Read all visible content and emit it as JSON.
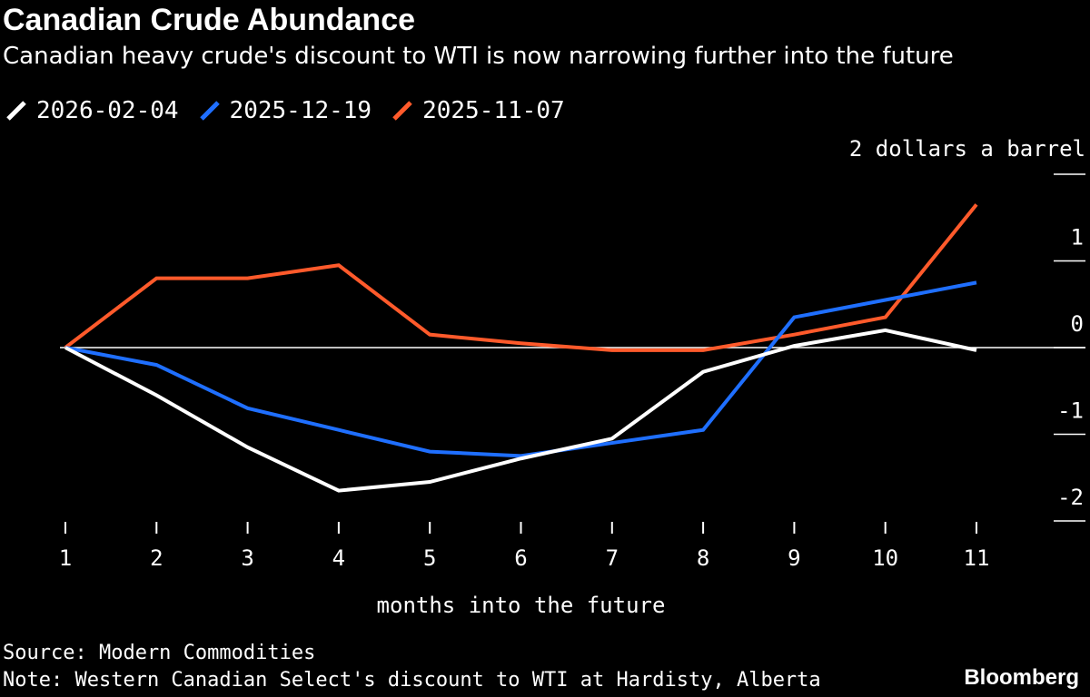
{
  "colors": {
    "background": "#000000",
    "text": "#ffffff",
    "series_white": "#ffffff",
    "series_blue": "#1f6fff",
    "series_orange": "#ff5a2b"
  },
  "chart_data": {
    "type": "line",
    "title": "Canadian Crude Abundance",
    "subtitle": "Canadian heavy crude's discount to WTI is now narrowing further into the future",
    "xlabel": "months into the future",
    "ylabel": "2 dollars a barrel",
    "x": [
      1,
      2,
      3,
      4,
      5,
      6,
      7,
      8,
      9,
      10,
      11
    ],
    "xticks": [
      "1",
      "2",
      "3",
      "4",
      "5",
      "6",
      "7",
      "8",
      "9",
      "10",
      "11"
    ],
    "yticks": [
      {
        "value": 1,
        "label": "1"
      },
      {
        "value": 0,
        "label": "0"
      },
      {
        "value": -1,
        "label": "-1"
      },
      {
        "value": -2,
        "label": "-2"
      }
    ],
    "ylim": [
      -2.0,
      2.0
    ],
    "grid": false,
    "legend_position": "top-left",
    "series": [
      {
        "name": "2026-02-04",
        "color": "#ffffff",
        "values": [
          0,
          -0.55,
          -1.15,
          -1.65,
          -1.55,
          -1.28,
          -1.05,
          -0.28,
          0.02,
          0.2,
          -0.03
        ]
      },
      {
        "name": "2025-12-19",
        "color": "#1f6fff",
        "values": [
          0,
          -0.2,
          -0.7,
          -0.95,
          -1.2,
          -1.25,
          -1.1,
          -0.95,
          0.35,
          0.55,
          0.75
        ]
      },
      {
        "name": "2025-11-07",
        "color": "#ff5a2b",
        "values": [
          0,
          0.8,
          0.8,
          0.95,
          0.15,
          0.05,
          -0.03,
          -0.03,
          0.15,
          0.35,
          1.65
        ]
      }
    ]
  },
  "footer": {
    "source": "Source: Modern Commodities",
    "note": "Note: Western Canadian Select's discount to WTI at Hardisty, Alberta",
    "brand": "Bloomberg"
  }
}
